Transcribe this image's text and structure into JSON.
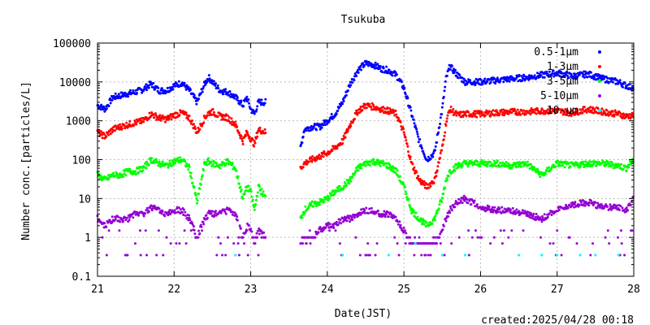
{
  "chart_data": {
    "type": "scatter",
    "title": "Tsukuba",
    "xlabel": "Date(JST)",
    "ylabel": "Number conc.[particles/L]",
    "footer": "created:2025/04/28 00:18",
    "xlim": [
      21,
      28
    ],
    "ylim": [
      0.1,
      100000
    ],
    "yscale": "log",
    "grid": true,
    "legend_position": "top-right",
    "x_ticks": [
      "21",
      "22",
      "23",
      "24",
      "25",
      "26",
      "27",
      "28"
    ],
    "y_ticks": [
      "0.1",
      "1",
      "10",
      "100",
      "1000",
      "10000",
      "100000"
    ],
    "gap": [
      23.2,
      23.65
    ],
    "series": [
      {
        "name": "0.5-1μm",
        "color": "#0000ff",
        "points": [
          [
            21.0,
            2500
          ],
          [
            21.1,
            2000
          ],
          [
            21.2,
            4000
          ],
          [
            21.3,
            4500
          ],
          [
            21.4,
            5000
          ],
          [
            21.5,
            5500
          ],
          [
            21.6,
            6500
          ],
          [
            21.7,
            9000
          ],
          [
            21.8,
            6000
          ],
          [
            21.9,
            6000
          ],
          [
            22.0,
            8000
          ],
          [
            22.1,
            9500
          ],
          [
            22.2,
            6000
          ],
          [
            22.3,
            3000
          ],
          [
            22.4,
            9000
          ],
          [
            22.45,
            13000
          ],
          [
            22.5,
            10000
          ],
          [
            22.6,
            6000
          ],
          [
            22.7,
            5500
          ],
          [
            22.8,
            4000
          ],
          [
            22.9,
            2500
          ],
          [
            22.95,
            4000
          ],
          [
            23.0,
            2000
          ],
          [
            23.05,
            1500
          ],
          [
            23.1,
            3000
          ],
          [
            23.2,
            3000
          ],
          [
            23.65,
            200
          ],
          [
            23.7,
            600
          ],
          [
            23.8,
            700
          ],
          [
            23.9,
            700
          ],
          [
            24.0,
            1000
          ],
          [
            24.1,
            1500
          ],
          [
            24.2,
            3000
          ],
          [
            24.3,
            9000
          ],
          [
            24.4,
            20000
          ],
          [
            24.5,
            30000
          ],
          [
            24.6,
            28000
          ],
          [
            24.7,
            22000
          ],
          [
            24.8,
            20000
          ],
          [
            24.9,
            15000
          ],
          [
            25.0,
            7000
          ],
          [
            25.1,
            1500
          ],
          [
            25.2,
            300
          ],
          [
            25.3,
            100
          ],
          [
            25.4,
            150
          ],
          [
            25.5,
            2000
          ],
          [
            25.55,
            12000
          ],
          [
            25.6,
            25000
          ],
          [
            25.7,
            15000
          ],
          [
            25.8,
            10000
          ],
          [
            26.0,
            10000
          ],
          [
            26.2,
            11000
          ],
          [
            26.4,
            12000
          ],
          [
            26.6,
            13000
          ],
          [
            26.8,
            15000
          ],
          [
            27.0,
            17000
          ],
          [
            27.2,
            14000
          ],
          [
            27.4,
            16000
          ],
          [
            27.6,
            12000
          ],
          [
            27.8,
            10000
          ],
          [
            27.9,
            8000
          ],
          [
            28.0,
            7000
          ]
        ]
      },
      {
        "name": "1-3μm",
        "color": "#ff0000",
        "points": [
          [
            21.0,
            500
          ],
          [
            21.1,
            400
          ],
          [
            21.2,
            600
          ],
          [
            21.3,
            700
          ],
          [
            21.4,
            800
          ],
          [
            21.5,
            900
          ],
          [
            21.6,
            1000
          ],
          [
            21.7,
            1500
          ],
          [
            21.8,
            1200
          ],
          [
            21.9,
            1100
          ],
          [
            22.0,
            1400
          ],
          [
            22.1,
            1600
          ],
          [
            22.2,
            1200
          ],
          [
            22.3,
            500
          ],
          [
            22.4,
            1200
          ],
          [
            22.45,
            1600
          ],
          [
            22.5,
            1700
          ],
          [
            22.6,
            1300
          ],
          [
            22.7,
            1200
          ],
          [
            22.8,
            800
          ],
          [
            22.9,
            300
          ],
          [
            22.95,
            500
          ],
          [
            23.0,
            350
          ],
          [
            23.05,
            250
          ],
          [
            23.1,
            600
          ],
          [
            23.2,
            500
          ],
          [
            23.65,
            60
          ],
          [
            23.7,
            80
          ],
          [
            23.8,
            100
          ],
          [
            23.9,
            120
          ],
          [
            24.0,
            150
          ],
          [
            24.1,
            200
          ],
          [
            24.2,
            300
          ],
          [
            24.3,
            800
          ],
          [
            24.4,
            1800
          ],
          [
            24.5,
            2500
          ],
          [
            24.6,
            2300
          ],
          [
            24.7,
            2000
          ],
          [
            24.8,
            1800
          ],
          [
            24.9,
            1500
          ],
          [
            25.0,
            500
          ],
          [
            25.1,
            80
          ],
          [
            25.2,
            30
          ],
          [
            25.3,
            20
          ],
          [
            25.4,
            30
          ],
          [
            25.5,
            200
          ],
          [
            25.55,
            900
          ],
          [
            25.6,
            2000
          ],
          [
            25.7,
            1400
          ],
          [
            25.8,
            1500
          ],
          [
            26.0,
            1500
          ],
          [
            26.2,
            1600
          ],
          [
            26.4,
            1700
          ],
          [
            26.6,
            1700
          ],
          [
            26.8,
            1800
          ],
          [
            27.0,
            1800
          ],
          [
            27.2,
            1600
          ],
          [
            27.4,
            2000
          ],
          [
            27.6,
            1700
          ],
          [
            27.8,
            1500
          ],
          [
            27.9,
            1300
          ],
          [
            28.0,
            1400
          ]
        ]
      },
      {
        "name": "3-5μm",
        "color": "#00ff00",
        "points": [
          [
            21.0,
            40
          ],
          [
            21.1,
            30
          ],
          [
            21.2,
            40
          ],
          [
            21.3,
            40
          ],
          [
            21.4,
            50
          ],
          [
            21.5,
            50
          ],
          [
            21.6,
            60
          ],
          [
            21.7,
            100
          ],
          [
            21.8,
            80
          ],
          [
            21.9,
            70
          ],
          [
            22.0,
            90
          ],
          [
            22.1,
            100
          ],
          [
            22.2,
            60
          ],
          [
            22.3,
            8
          ],
          [
            22.4,
            80
          ],
          [
            22.45,
            90
          ],
          [
            22.5,
            80
          ],
          [
            22.6,
            70
          ],
          [
            22.7,
            90
          ],
          [
            22.8,
            60
          ],
          [
            22.9,
            10
          ],
          [
            22.95,
            20
          ],
          [
            23.0,
            15
          ],
          [
            23.05,
            5
          ],
          [
            23.1,
            20
          ],
          [
            23.2,
            10
          ],
          [
            23.65,
            3
          ],
          [
            23.7,
            5
          ],
          [
            23.8,
            7
          ],
          [
            23.9,
            8
          ],
          [
            24.0,
            10
          ],
          [
            24.1,
            15
          ],
          [
            24.2,
            20
          ],
          [
            24.3,
            30
          ],
          [
            24.4,
            60
          ],
          [
            24.5,
            80
          ],
          [
            24.6,
            90
          ],
          [
            24.7,
            80
          ],
          [
            24.8,
            70
          ],
          [
            24.9,
            50
          ],
          [
            25.0,
            20
          ],
          [
            25.1,
            5
          ],
          [
            25.2,
            3
          ],
          [
            25.3,
            2
          ],
          [
            25.4,
            3
          ],
          [
            25.5,
            10
          ],
          [
            25.55,
            30
          ],
          [
            25.6,
            50
          ],
          [
            25.7,
            70
          ],
          [
            25.8,
            80
          ],
          [
            26.0,
            80
          ],
          [
            26.2,
            80
          ],
          [
            26.4,
            70
          ],
          [
            26.6,
            80
          ],
          [
            26.8,
            40
          ],
          [
            27.0,
            80
          ],
          [
            27.2,
            70
          ],
          [
            27.4,
            80
          ],
          [
            27.6,
            80
          ],
          [
            27.8,
            70
          ],
          [
            27.9,
            60
          ],
          [
            28.0,
            100
          ]
        ]
      },
      {
        "name": "5-10μm",
        "color": "#9400d3",
        "points": [
          [
            21.0,
            3
          ],
          [
            21.1,
            2
          ],
          [
            21.2,
            3
          ],
          [
            21.3,
            3
          ],
          [
            21.4,
            3
          ],
          [
            21.5,
            4
          ],
          [
            21.6,
            4
          ],
          [
            21.7,
            6
          ],
          [
            21.8,
            5
          ],
          [
            21.9,
            4
          ],
          [
            22.0,
            5
          ],
          [
            22.1,
            5
          ],
          [
            22.2,
            3
          ],
          [
            22.3,
            1
          ],
          [
            22.4,
            3
          ],
          [
            22.45,
            4
          ],
          [
            22.5,
            4
          ],
          [
            22.6,
            4
          ],
          [
            22.7,
            5
          ],
          [
            22.8,
            4
          ],
          [
            22.9,
            1
          ],
          [
            22.95,
            2
          ],
          [
            23.0,
            1.5
          ],
          [
            23.05,
            0.7
          ],
          [
            23.1,
            1.5
          ],
          [
            23.2,
            1
          ],
          [
            23.65,
            0.7
          ],
          [
            23.7,
            1
          ],
          [
            23.8,
            1
          ],
          [
            23.9,
            1.5
          ],
          [
            24.0,
            2
          ],
          [
            24.1,
            2
          ],
          [
            24.2,
            3
          ],
          [
            24.3,
            3
          ],
          [
            24.4,
            4
          ],
          [
            24.5,
            5
          ],
          [
            24.6,
            5
          ],
          [
            24.7,
            4
          ],
          [
            24.8,
            4
          ],
          [
            24.9,
            3
          ],
          [
            25.0,
            1.5
          ],
          [
            25.1,
            0.7
          ],
          [
            25.2,
            0.7
          ],
          [
            25.3,
            0.5
          ],
          [
            25.4,
            0.7
          ],
          [
            25.5,
            1.5
          ],
          [
            25.55,
            3
          ],
          [
            25.6,
            5
          ],
          [
            25.7,
            8
          ],
          [
            25.8,
            10
          ],
          [
            26.0,
            6
          ],
          [
            26.2,
            5
          ],
          [
            26.4,
            5
          ],
          [
            26.6,
            4
          ],
          [
            26.8,
            3
          ],
          [
            27.0,
            5
          ],
          [
            27.2,
            7
          ],
          [
            27.4,
            8
          ],
          [
            27.6,
            6
          ],
          [
            27.8,
            6
          ],
          [
            27.9,
            5
          ],
          [
            28.0,
            10
          ]
        ]
      },
      {
        "name": "10-μm",
        "color": "#00ffff",
        "points": [
          [
            22.8,
            0.35
          ],
          [
            24.2,
            0.35
          ],
          [
            24.8,
            0.35
          ],
          [
            25.15,
            0.7
          ],
          [
            25.5,
            0.35
          ],
          [
            25.8,
            0.35
          ],
          [
            26.5,
            0.35
          ],
          [
            26.8,
            0.35
          ],
          [
            27.0,
            0.35
          ],
          [
            27.3,
            0.35
          ],
          [
            27.5,
            0.35
          ],
          [
            27.8,
            0.35
          ]
        ]
      }
    ]
  }
}
